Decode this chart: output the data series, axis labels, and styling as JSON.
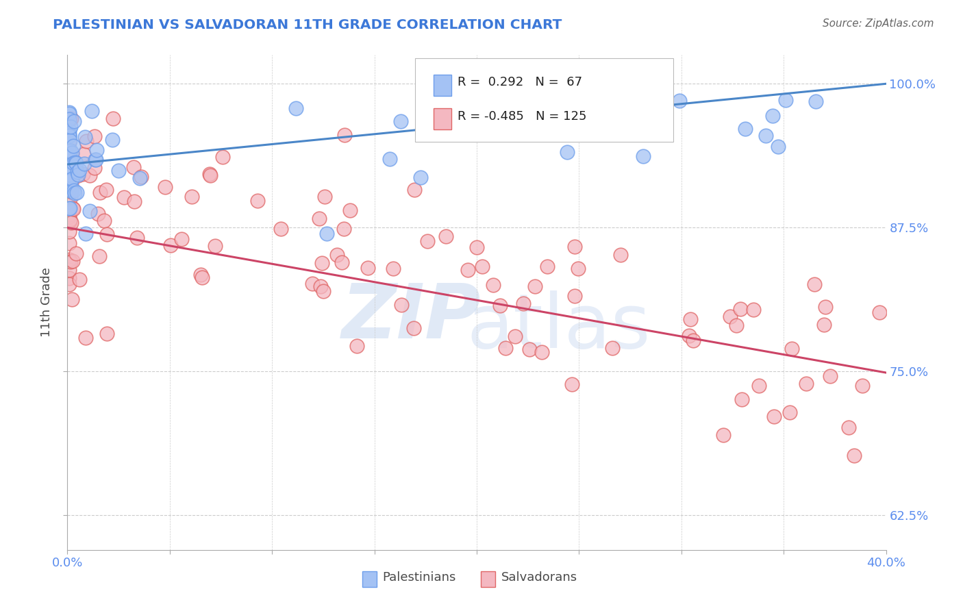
{
  "title": "PALESTINIAN VS SALVADORAN 11TH GRADE CORRELATION CHART",
  "source": "Source: ZipAtlas.com",
  "xlabel_palestinians": "Palestinians",
  "xlabel_salvadorans": "Salvadorans",
  "ylabel": "11th Grade",
  "x_min": 0.0,
  "x_max": 0.4,
  "y_min": 0.595,
  "y_max": 1.025,
  "y_ticks": [
    0.625,
    0.75,
    0.875,
    1.0
  ],
  "y_tick_labels": [
    "62.5%",
    "75.0%",
    "87.5%",
    "100.0%"
  ],
  "blue_R": 0.292,
  "blue_N": 67,
  "pink_R": -0.485,
  "pink_N": 125,
  "blue_color": "#a4c2f4",
  "pink_color": "#f4b8c1",
  "blue_edge_color": "#6d9eeb",
  "pink_edge_color": "#e06666",
  "blue_line_color": "#4a86c8",
  "pink_line_color": "#cc4466",
  "title_color": "#3c78d8",
  "axis_label_color": "#4a4a4a",
  "tick_color": "#5b8dee",
  "grid_color": "#cccccc",
  "source_color": "#666666"
}
